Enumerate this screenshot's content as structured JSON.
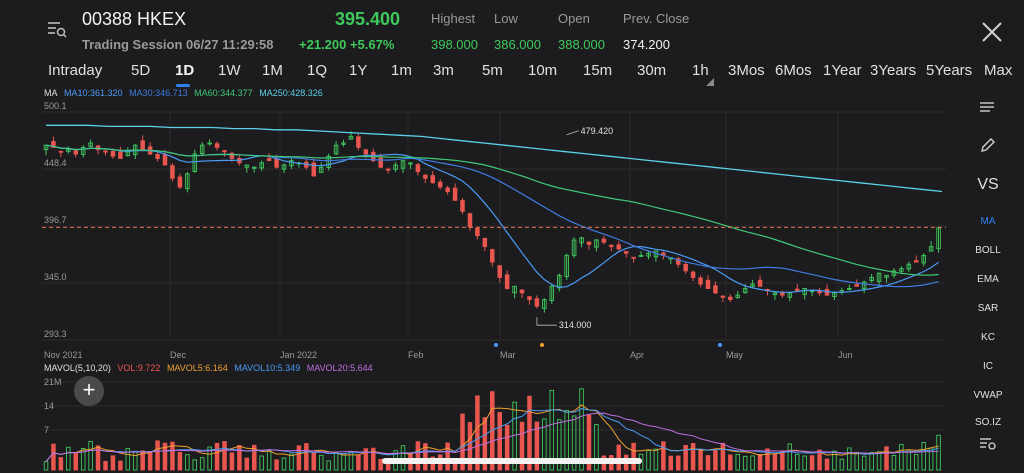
{
  "header": {
    "ticker": "00388 HKEX",
    "session": "Trading Session 06/27 11:29:58",
    "price": "395.400",
    "change": "+21.200 +5.67%",
    "stats": [
      {
        "label": "Highest",
        "value": "398.000"
      },
      {
        "label": "Low",
        "value": "386.000"
      },
      {
        "label": "Open",
        "value": "388.000"
      },
      {
        "label": "Prev. Close",
        "value": "374.200"
      }
    ]
  },
  "periods": [
    "Intraday",
    "5D",
    "1D",
    "1W",
    "1M",
    "1Q",
    "1Y",
    "1m",
    "3m",
    "5m",
    "10m",
    "15m",
    "30m",
    "1h",
    "3Mos",
    "6Mos",
    "1Year",
    "3Years",
    "5Years",
    "Max"
  ],
  "active_period": "1D",
  "ma_legend": {
    "title": "MA",
    "ma10": "MA10:361.320",
    "ma30": "MA30:346.713",
    "ma60": "MA60:344.377",
    "ma250": "MA250:428.326"
  },
  "vol_legend": {
    "title": "MAVOL(5,10,20)",
    "vol": "VOL:9.722",
    "mavol5": "MAVOL5:6.164",
    "mavol10": "MAVOL10:5.349",
    "mavol20": "MAVOL20:5.644"
  },
  "sidebar": [
    "VS",
    "MA",
    "BOLL",
    "EMA",
    "SAR",
    "KC",
    "IC",
    "VWAP",
    "SO.IZ"
  ],
  "colors": {
    "up": "#3fc85c",
    "down": "#e8564f",
    "ma10": "#4a9bf5",
    "ma30": "#3f7be0",
    "ma60": "#3fc877",
    "ma250": "#5ad3e8",
    "mavol5": "#f0a030",
    "mavol10": "#4a9bf5",
    "mavol20": "#c070e0",
    "dashed": "#e8744f"
  },
  "chart_data": {
    "type": "candlestick",
    "y_ticks": [
      "500.1",
      "448.4",
      "396.7",
      "345.0",
      "293.3"
    ],
    "ylim": [
      293.3,
      500.1
    ],
    "x_ticks": [
      "Nov 2021",
      "Dec",
      "Jan 2022",
      "Feb",
      "Mar",
      "Apr",
      "May",
      "Jun"
    ],
    "annotations": [
      {
        "text": "479.420",
        "value": 479.42,
        "month": "Jan-Feb 2022"
      },
      {
        "text": "314.000",
        "value": 314.0,
        "month": "Mar 2022"
      }
    ],
    "last_price_line": 395.4,
    "close_series": [
      470,
      468,
      464,
      466,
      462,
      468,
      472,
      466,
      464,
      460,
      458,
      464,
      470,
      466,
      462,
      458,
      452,
      440,
      432,
      444,
      462,
      470,
      472,
      468,
      464,
      458,
      454,
      452,
      450,
      454,
      456,
      450,
      452,
      456,
      454,
      450,
      442,
      450,
      460,
      470,
      472,
      478,
      468,
      462,
      456,
      450,
      448,
      452,
      456,
      454,
      446,
      440,
      436,
      432,
      428,
      420,
      410,
      396,
      388,
      378,
      364,
      350,
      340,
      342,
      336,
      330,
      324,
      330,
      342,
      352,
      370,
      384,
      386,
      380,
      384,
      382,
      378,
      376,
      372,
      368,
      370,
      372,
      374,
      370,
      368,
      362,
      356,
      350,
      344,
      340,
      336,
      332,
      330,
      334,
      340,
      344,
      342,
      338,
      336,
      334,
      336,
      338,
      340,
      338,
      336,
      334,
      336,
      338,
      340,
      342,
      346,
      350,
      354,
      352,
      356,
      358,
      362,
      364,
      370,
      378,
      395
    ],
    "ma250": [
      488,
      488,
      488,
      487,
      487,
      487,
      486,
      486,
      486,
      485,
      485,
      484,
      484,
      483,
      482,
      481,
      480,
      479,
      478,
      476,
      474,
      472,
      470,
      468,
      466,
      464,
      462,
      460,
      458,
      456,
      454,
      452,
      450,
      448,
      446,
      444,
      442,
      440,
      438,
      436,
      434,
      432,
      430,
      428
    ],
    "volume_ticks": [
      "21M",
      "14",
      "7"
    ],
    "volume_range": [
      0,
      21
    ]
  }
}
